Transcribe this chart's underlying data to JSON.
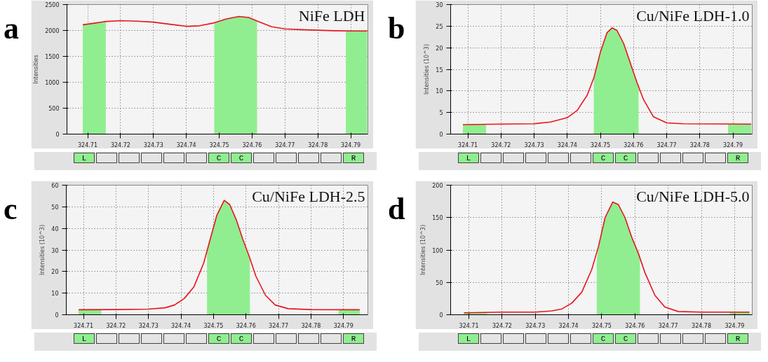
{
  "chart_data": [
    {
      "type": "line",
      "title": "NiFe LDH",
      "ylabel": "Intensities",
      "annotations": [
        "a",
        "L",
        "C",
        "C",
        "R"
      ],
      "xlim": [
        324.7037,
        324.7952
      ],
      "xticks": [
        324.71,
        324.72,
        324.73,
        324.74,
        324.75,
        324.76,
        324.77,
        324.78,
        324.79
      ],
      "ylim": [
        0,
        2500
      ],
      "yticks": [
        0,
        500,
        1000,
        1500,
        2000,
        2500
      ],
      "grid": true,
      "line_style": "solid",
      "series": [
        {
          "type": "area",
          "color": "#90ee90",
          "x": [
            324.7085,
            324.712,
            324.7155
          ],
          "values": [
            2110,
            2140,
            2170
          ]
        },
        {
          "type": "area",
          "color": "#90ee90",
          "x": [
            324.7485,
            324.752,
            324.756,
            324.759,
            324.7615
          ],
          "values": [
            2150,
            2220,
            2270,
            2250,
            2180
          ]
        },
        {
          "type": "area",
          "color": "#90ee90",
          "x": [
            324.7885,
            324.792,
            324.795
          ],
          "values": [
            1990,
            1990,
            1990
          ]
        },
        {
          "type": "line",
          "color": "#e8141c",
          "x": [
            324.7085,
            324.712,
            324.715,
            324.72,
            324.725,
            324.73,
            324.735,
            324.74,
            324.744,
            324.748,
            324.752,
            324.756,
            324.759,
            324.762,
            324.766,
            324.77,
            324.775,
            324.78,
            324.785,
            324.79,
            324.795
          ],
          "values": [
            2110,
            2140,
            2170,
            2190,
            2180,
            2160,
            2120,
            2080,
            2090,
            2140,
            2220,
            2270,
            2250,
            2170,
            2070,
            2030,
            2015,
            2005,
            1995,
            1990,
            1990
          ]
        }
      ]
    },
    {
      "type": "line",
      "title": "Cu/NiFe LDH-1.0",
      "ylabel": "Intensities (10^3)",
      "annotations": [
        "b",
        "L",
        "C",
        "C",
        "R"
      ],
      "xlim": [
        324.7048,
        324.7958
      ],
      "xticks": [
        324.71,
        324.72,
        324.73,
        324.74,
        324.75,
        324.76,
        324.77,
        324.78,
        324.79
      ],
      "ylim": [
        0,
        30
      ],
      "yticks": [
        0,
        5,
        10,
        15,
        20,
        25,
        30
      ],
      "grid": true,
      "line_style": "solid",
      "series": [
        {
          "type": "area",
          "color": "#90ee90",
          "x": [
            324.7085,
            324.7155
          ],
          "values": [
            2.2,
            2.2
          ]
        },
        {
          "type": "area",
          "color": "#90ee90",
          "x": [
            324.748,
            324.75,
            324.752,
            324.7535,
            324.755,
            324.757,
            324.759,
            324.761,
            324.7615
          ],
          "values": [
            13,
            19,
            23.5,
            24.6,
            24,
            21,
            16.5,
            12,
            11
          ]
        },
        {
          "type": "area",
          "color": "#90ee90",
          "x": [
            324.7885,
            324.7955
          ],
          "values": [
            2.3,
            2.3
          ]
        },
        {
          "type": "line",
          "color": "#e8141c",
          "x": [
            324.7085,
            324.72,
            324.73,
            324.735,
            324.74,
            324.743,
            324.746,
            324.748,
            324.75,
            324.752,
            324.7535,
            324.755,
            324.757,
            324.759,
            324.761,
            324.763,
            324.766,
            324.77,
            324.775,
            324.7955
          ],
          "values": [
            2.2,
            2.3,
            2.4,
            2.8,
            3.8,
            5.5,
            9,
            13,
            19,
            23.5,
            24.6,
            24,
            21,
            16.5,
            12,
            8,
            4,
            2.6,
            2.4,
            2.3
          ]
        }
      ]
    },
    {
      "type": "line",
      "title": "Cu/NiFe LDH-2.5",
      "ylabel": "Intensities (10^3)",
      "annotations": [
        "c",
        "L",
        "C",
        "C",
        "R"
      ],
      "xlim": [
        324.7047,
        324.7975
      ],
      "xticks": [
        324.71,
        324.72,
        324.73,
        324.74,
        324.75,
        324.76,
        324.77,
        324.78,
        324.79
      ],
      "ylim": [
        0,
        60
      ],
      "yticks": [
        0,
        10,
        20,
        30,
        40,
        50,
        60
      ],
      "grid": true,
      "line_style": "solid",
      "series": [
        {
          "type": "area",
          "color": "#90ee90",
          "x": [
            324.7085,
            324.7155
          ],
          "values": [
            2.3,
            2.3
          ]
        },
        {
          "type": "area",
          "color": "#90ee90",
          "x": [
            324.748,
            324.749,
            324.751,
            324.7533,
            324.755,
            324.757,
            324.759,
            324.761,
            324.7612
          ],
          "values": [
            29,
            35,
            46,
            53,
            51,
            44,
            35,
            27,
            26
          ]
        },
        {
          "type": "area",
          "color": "#90ee90",
          "x": [
            324.7885,
            324.795
          ],
          "values": [
            2.3,
            2.3
          ]
        },
        {
          "type": "line",
          "color": "#e8141c",
          "x": [
            324.7085,
            324.72,
            324.73,
            324.735,
            324.738,
            324.741,
            324.744,
            324.747,
            324.749,
            324.751,
            324.7533,
            324.755,
            324.757,
            324.759,
            324.761,
            324.763,
            324.766,
            324.769,
            324.773,
            324.78,
            324.795
          ],
          "values": [
            2.3,
            2.4,
            2.6,
            3.2,
            4.5,
            7.5,
            13,
            24,
            35,
            46,
            53,
            51,
            44,
            35,
            27,
            18,
            9,
            4.5,
            2.8,
            2.4,
            2.3
          ]
        }
      ]
    },
    {
      "type": "line",
      "title": "Cu/NiFe LDH-5.0",
      "ylabel": "Intensities (10^3)",
      "annotations": [
        "d",
        "L",
        "C",
        "C",
        "R"
      ],
      "xlim": [
        324.7045,
        324.7953
      ],
      "xticks": [
        324.71,
        324.72,
        324.73,
        324.74,
        324.75,
        324.76,
        324.77,
        324.78,
        324.79
      ],
      "ylim": [
        0,
        200
      ],
      "yticks": [
        0,
        50,
        100,
        150,
        200
      ],
      "grid": true,
      "line_style": "solid",
      "series": [
        {
          "type": "area",
          "color": "#90ee90",
          "x": [
            324.7085,
            324.7155
          ],
          "values": [
            3,
            4
          ]
        },
        {
          "type": "area",
          "color": "#90ee90",
          "x": [
            324.7485,
            324.749,
            324.751,
            324.7533,
            324.755,
            324.757,
            324.759,
            324.761,
            324.7615
          ],
          "values": [
            85,
            105,
            150,
            174,
            170,
            150,
            120,
            95,
            88
          ]
        },
        {
          "type": "area",
          "color": "#90ee90",
          "x": [
            324.7885,
            324.7945
          ],
          "values": [
            4,
            4
          ]
        },
        {
          "type": "line",
          "color": "#e8141c",
          "x": [
            324.7085,
            324.72,
            324.73,
            324.735,
            324.738,
            324.741,
            324.744,
            324.747,
            324.749,
            324.751,
            324.7533,
            324.755,
            324.757,
            324.759,
            324.761,
            324.763,
            324.766,
            324.769,
            324.773,
            324.78,
            324.7945
          ],
          "values": [
            3,
            4,
            4,
            6,
            9,
            18,
            35,
            70,
            105,
            150,
            174,
            170,
            150,
            120,
            95,
            65,
            30,
            12,
            5,
            4,
            4
          ]
        }
      ]
    }
  ]
}
